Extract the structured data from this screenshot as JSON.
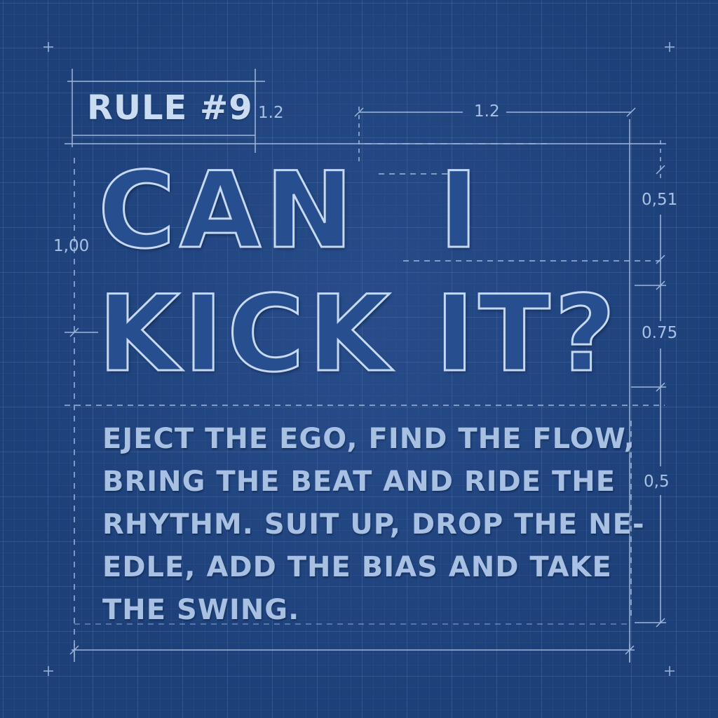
{
  "rule_label": "RULE #9",
  "headline": {
    "line1": "CAN  I",
    "line2": "KICK IT?"
  },
  "body_lines": [
    "EJECT THE EGO, FIND THE FLOW,",
    "BRING THE BEAT AND RIDE THE",
    "RHYTHM. SUIT UP, DROP THE NE-",
    "EDLE, ADD THE BIAS AND TAKE",
    "THE SWING."
  ],
  "dimensions": {
    "label_width": "1.2",
    "top_width": "1.2",
    "left_height": "1,00",
    "line1_height": "0,51",
    "line2_height": "0.75",
    "body_height": "0,5"
  },
  "colors": {
    "background": "#1d4079",
    "line": "#b5cbea",
    "text": "#c9dcf2"
  }
}
